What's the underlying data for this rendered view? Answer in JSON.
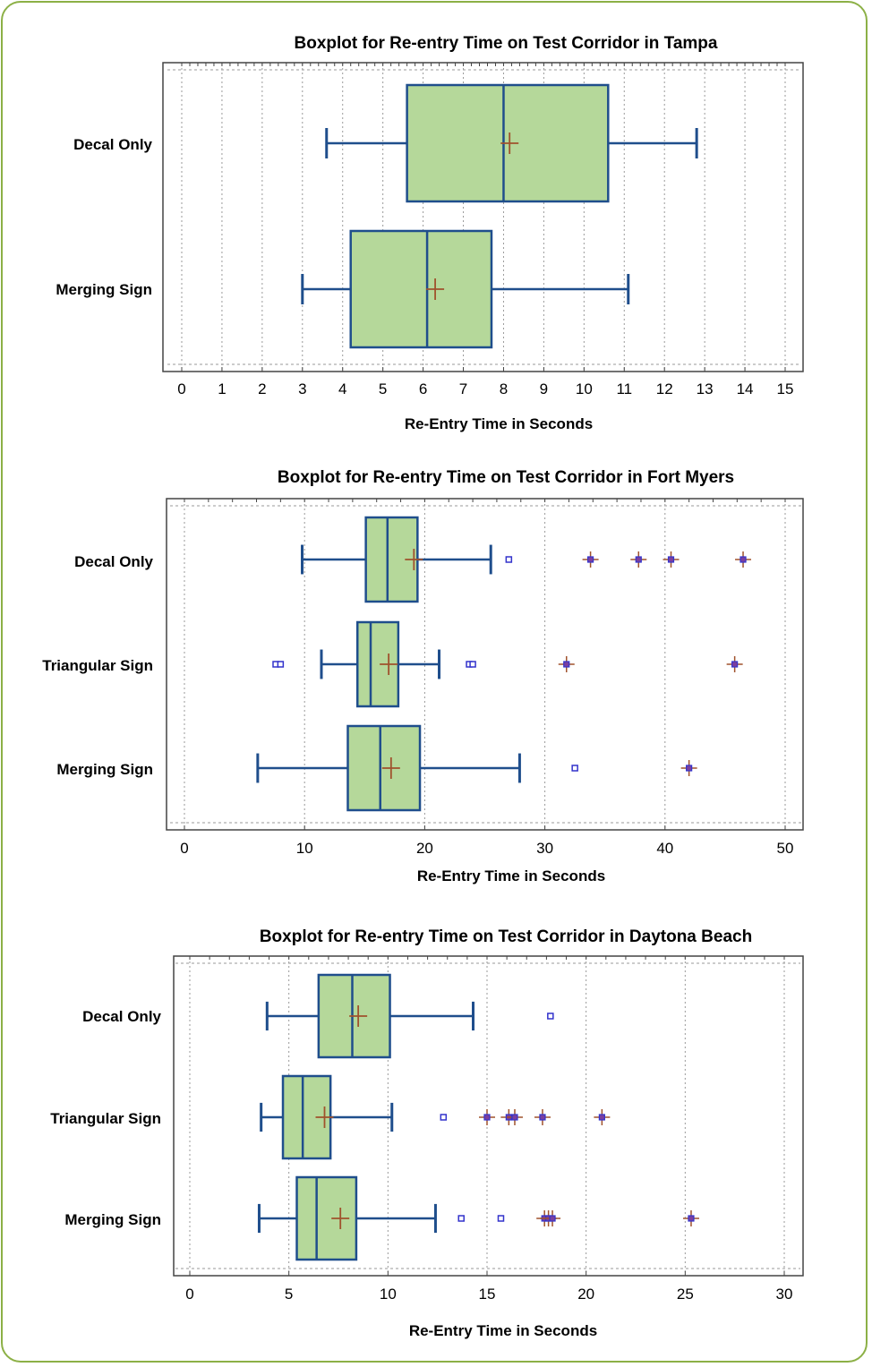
{
  "colors": {
    "frame": "#8cb046",
    "box_fill": "#b5d89a",
    "box_stroke": "#1f4e8c",
    "mean_marker": "#a0522d",
    "outlier": "#3333cc",
    "far_outlier_fill": "#7b3f9e"
  },
  "chart_data": [
    {
      "type": "boxplot",
      "title": "Boxplot for Re-entry Time on Test Corridor in Tampa",
      "xlabel": "Re-Entry Time in Seconds",
      "xlim": [
        0,
        15
      ],
      "xticks": [
        "0",
        "1",
        "2",
        "3",
        "4",
        "5",
        "6",
        "7",
        "8",
        "9",
        "10",
        "11",
        "12",
        "13",
        "14",
        "15"
      ],
      "grid": "vertical-dotted",
      "categories": [
        {
          "name": "Decal Only",
          "whisker_low": 3.6,
          "q1": 5.6,
          "median": 8.0,
          "q3": 10.6,
          "whisker_high": 12.8,
          "mean": 8.15,
          "outliers": [],
          "far_outliers": []
        },
        {
          "name": "Merging Sign",
          "whisker_low": 3.0,
          "q1": 4.2,
          "median": 6.1,
          "q3": 7.7,
          "whisker_high": 11.1,
          "mean": 6.3,
          "outliers": [],
          "far_outliers": []
        }
      ]
    },
    {
      "type": "boxplot",
      "title": "Boxplot for Re-entry Time on Test Corridor in Fort Myers",
      "xlabel": "Re-Entry Time in Seconds",
      "xlim": [
        0,
        50
      ],
      "xticks": [
        "0",
        "10",
        "20",
        "30",
        "40",
        "50"
      ],
      "grid": "vertical-dotted",
      "categories": [
        {
          "name": "Decal Only",
          "whisker_low": 9.8,
          "q1": 15.1,
          "median": 16.9,
          "q3": 19.4,
          "whisker_high": 25.5,
          "mean": 19.1,
          "outliers": [
            27.0
          ],
          "far_outliers": [
            33.8,
            37.8,
            40.5,
            46.5
          ]
        },
        {
          "name": "Triangular Sign",
          "whisker_low": 11.4,
          "q1": 14.4,
          "median": 15.5,
          "q3": 17.8,
          "whisker_high": 21.2,
          "mean": 17.0,
          "outliers": [
            7.6,
            8.0,
            23.7,
            24.0
          ],
          "far_outliers": [
            31.8,
            45.8
          ]
        },
        {
          "name": "Merging Sign",
          "whisker_low": 6.1,
          "q1": 13.6,
          "median": 16.3,
          "q3": 19.6,
          "whisker_high": 27.9,
          "mean": 17.2,
          "outliers": [
            32.5
          ],
          "far_outliers": [
            42.0
          ]
        }
      ]
    },
    {
      "type": "boxplot",
      "title": "Boxplot for Re-entry Time on Test Corridor in Daytona Beach",
      "xlabel": "Re-Entry Time in Seconds",
      "xlim": [
        0,
        30
      ],
      "xticks": [
        "0",
        "5",
        "10",
        "15",
        "20",
        "25",
        "30"
      ],
      "grid": "vertical-dotted",
      "categories": [
        {
          "name": "Decal Only",
          "whisker_low": 3.9,
          "q1": 6.5,
          "median": 8.2,
          "q3": 10.1,
          "whisker_high": 14.3,
          "mean": 8.5,
          "outliers": [
            18.2
          ],
          "far_outliers": []
        },
        {
          "name": "Triangular Sign",
          "whisker_low": 3.6,
          "q1": 4.7,
          "median": 5.7,
          "q3": 7.1,
          "whisker_high": 10.2,
          "mean": 6.8,
          "outliers": [
            12.8
          ],
          "far_outliers": [
            15.0,
            16.1,
            16.4,
            17.8,
            20.8
          ]
        },
        {
          "name": "Merging Sign",
          "whisker_low": 3.5,
          "q1": 5.4,
          "median": 6.4,
          "q3": 8.4,
          "whisker_high": 12.4,
          "mean": 7.6,
          "outliers": [
            13.7,
            15.7
          ],
          "far_outliers": [
            17.9,
            18.1,
            18.3,
            25.3
          ]
        }
      ]
    }
  ]
}
